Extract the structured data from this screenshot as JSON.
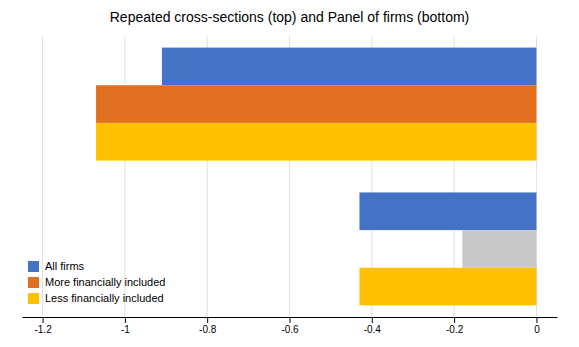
{
  "chart_data": {
    "type": "bar",
    "orientation": "horizontal",
    "title": "Repeated cross-sections (top) and Panel of firms (bottom)",
    "categories": [
      null,
      null
    ],
    "series": [
      {
        "name": "All firms",
        "color": "#4472C4",
        "values": [
          -0.91,
          -0.43
        ]
      },
      {
        "name": "More financially included",
        "color": "#E07020",
        "colors": [
          "#E07020",
          "#C8C8C8"
        ],
        "values": [
          -1.07,
          -0.18
        ]
      },
      {
        "name": "Less financially included",
        "color": "#FFC000",
        "values": [
          -1.07,
          -0.43
        ]
      }
    ],
    "xlim": [
      -1.25,
      0.05
    ],
    "xticks": [
      -1.2,
      -1,
      -0.8,
      -0.6,
      -0.4,
      -0.2,
      0
    ],
    "grid": true,
    "legend": "lower left",
    "tick_labels": "x"
  }
}
